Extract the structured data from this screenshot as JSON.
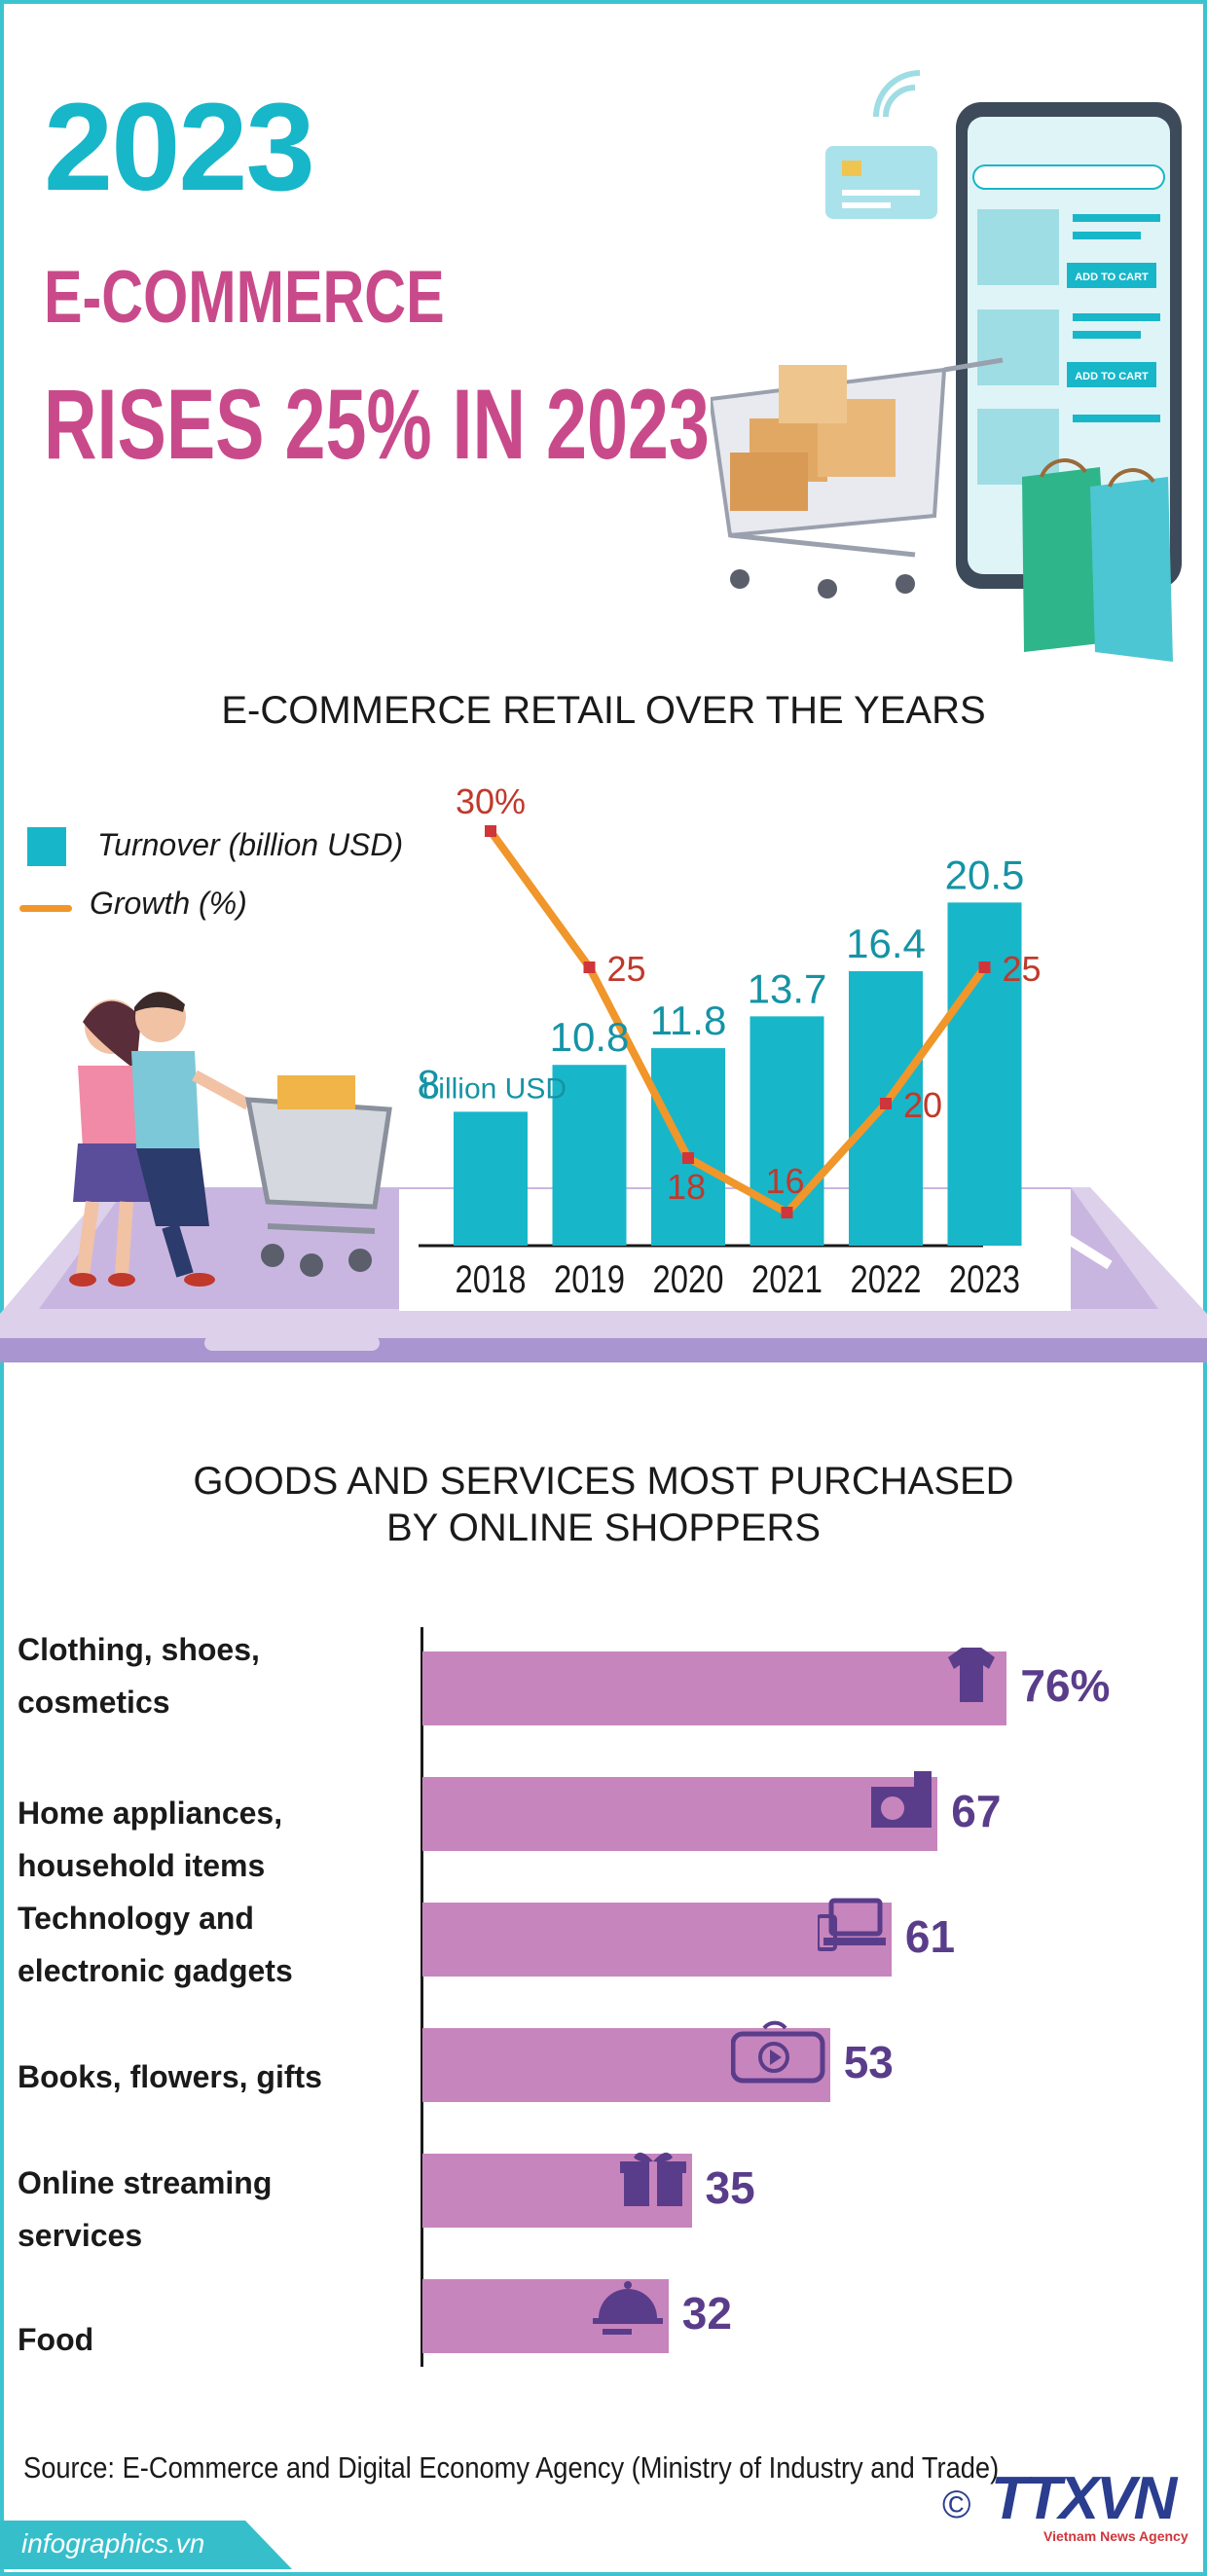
{
  "header": {
    "year": "2023",
    "subtitle_line1": "E-COMMERCE",
    "subtitle_line2": "RISES 25% IN 2023"
  },
  "phone": {
    "button_label": "ADD TO CART"
  },
  "colors": {
    "teal": "#18b6c9",
    "pink": "#c94a8a",
    "bar_pink": "#c785bd",
    "orange": "#f0962a",
    "growth_label": "#c0392b",
    "purple": "#5a3d8a"
  },
  "chart_data": [
    {
      "type": "bar",
      "title": "E-COMMERCE RETAIL OVER THE YEARS",
      "categories": [
        "2018",
        "2019",
        "2020",
        "2021",
        "2022",
        "2023"
      ],
      "series": [
        {
          "name": "Turnover (billion USD)",
          "kind": "bar",
          "values": [
            8,
            10.8,
            11.8,
            13.7,
            16.4,
            20.5
          ],
          "labels": [
            "8",
            "10.8",
            "11.8",
            "13.7",
            "16.4",
            "20.5"
          ]
        },
        {
          "name": "Growth (%)",
          "kind": "line",
          "values": [
            30,
            25,
            18,
            16,
            20,
            25
          ],
          "labels": [
            "30%",
            "25",
            "18",
            "16",
            "20",
            "25"
          ]
        }
      ],
      "first_bar_unit": "billion USD",
      "legend": "top-left"
    },
    {
      "type": "bar",
      "orientation": "horizontal",
      "title": "GOODS AND SERVICES MOST PURCHASED BY ONLINE SHOPPERS",
      "categories": [
        "Clothing, shoes,\ncosmetics",
        "Home appliances,\nhousehold items",
        "Technology and\nelectronic gadgets",
        "Books, flowers, gifts",
        "Online streaming\nservices",
        "Food"
      ],
      "values": [
        76,
        67,
        61,
        53,
        35,
        32
      ],
      "labels": [
        "76%",
        "67",
        "61",
        "53",
        "35",
        "32"
      ],
      "icons": [
        "clothing-icon",
        "appliance-icon",
        "laptop-icon",
        "video-icon",
        "gift-icon",
        "food-icon"
      ]
    }
  ],
  "source": "Source: E-Commerce and Digital Economy Agency (Ministry of Industry and Trade)",
  "footer": {
    "site": "infographics.vn",
    "copyright": "©",
    "agency": "TTXVN",
    "agency_sub": "Vietnam News Agency"
  }
}
